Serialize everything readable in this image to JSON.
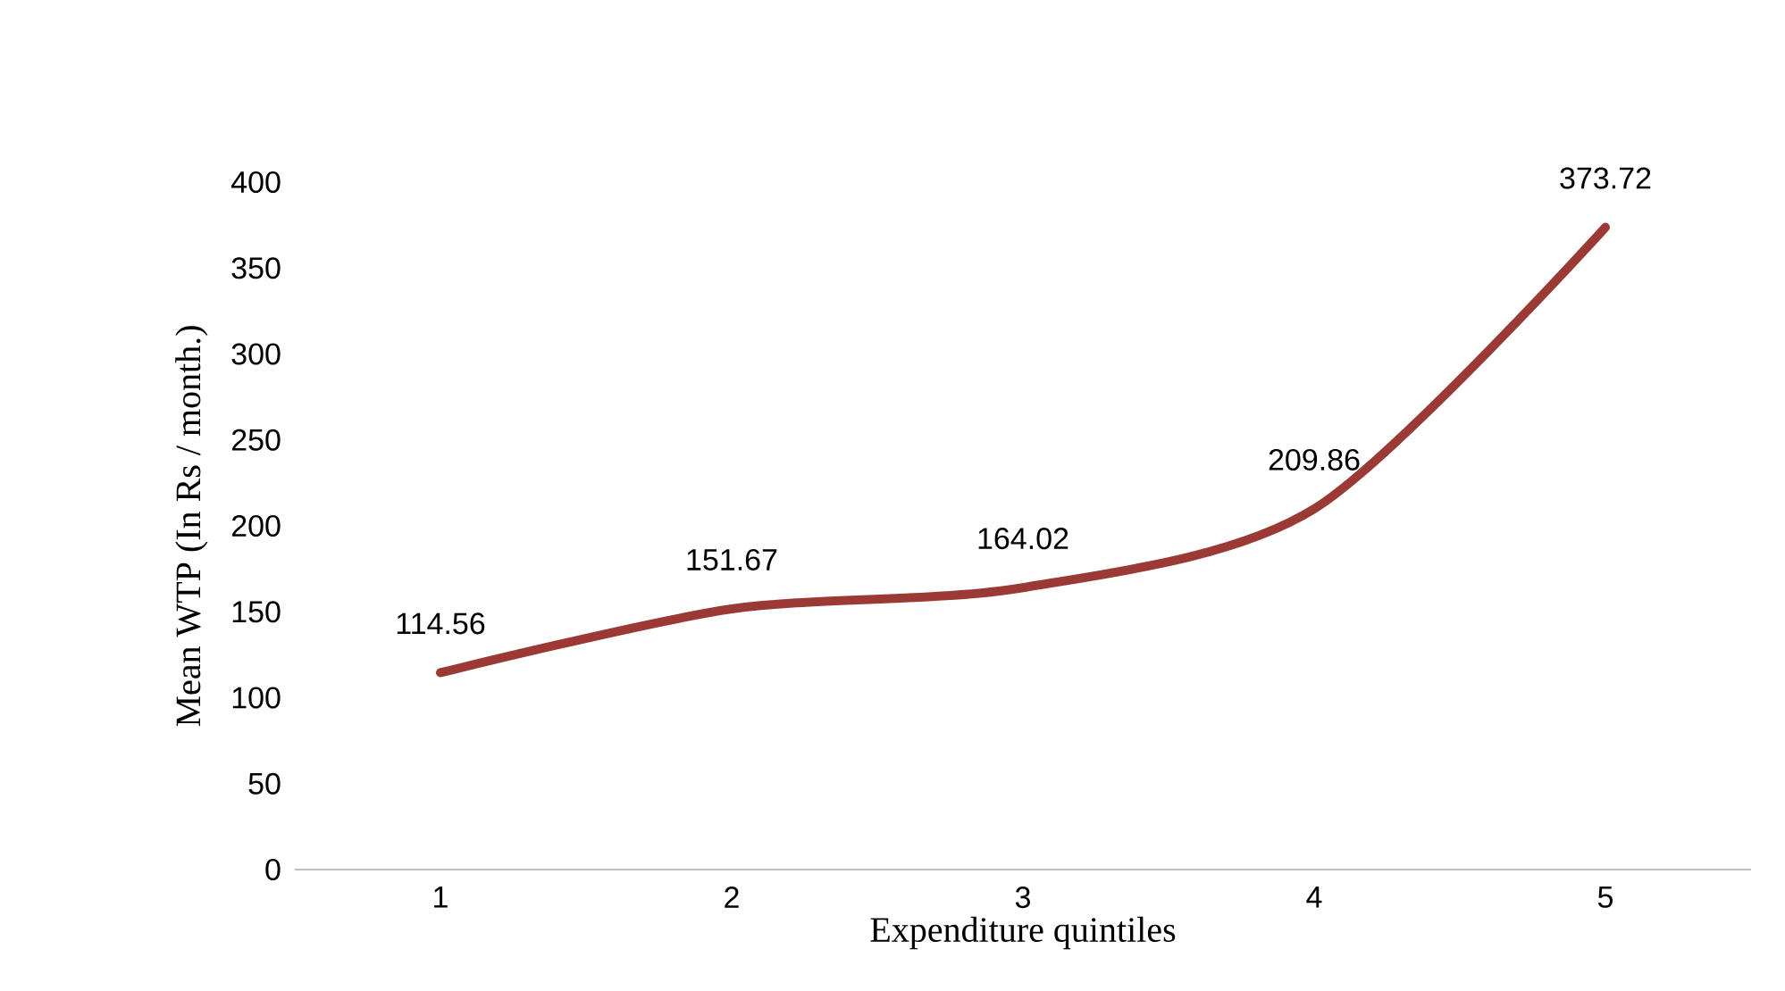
{
  "chart_data": {
    "type": "line",
    "xlabel": "Expenditure quintiles",
    "ylabel": "Mean WTP (In Rs / month.)",
    "categories": [
      "1",
      "2",
      "3",
      "4",
      "5"
    ],
    "values": [
      114.56,
      151.67,
      164.02,
      209.86,
      373.72
    ],
    "color": "#9b3a35",
    "ylim": [
      0,
      400
    ],
    "yticks": [
      0,
      50,
      100,
      150,
      200,
      250,
      300,
      350,
      400
    ],
    "data_labels": true,
    "marker": "none",
    "line_style": "solid"
  }
}
